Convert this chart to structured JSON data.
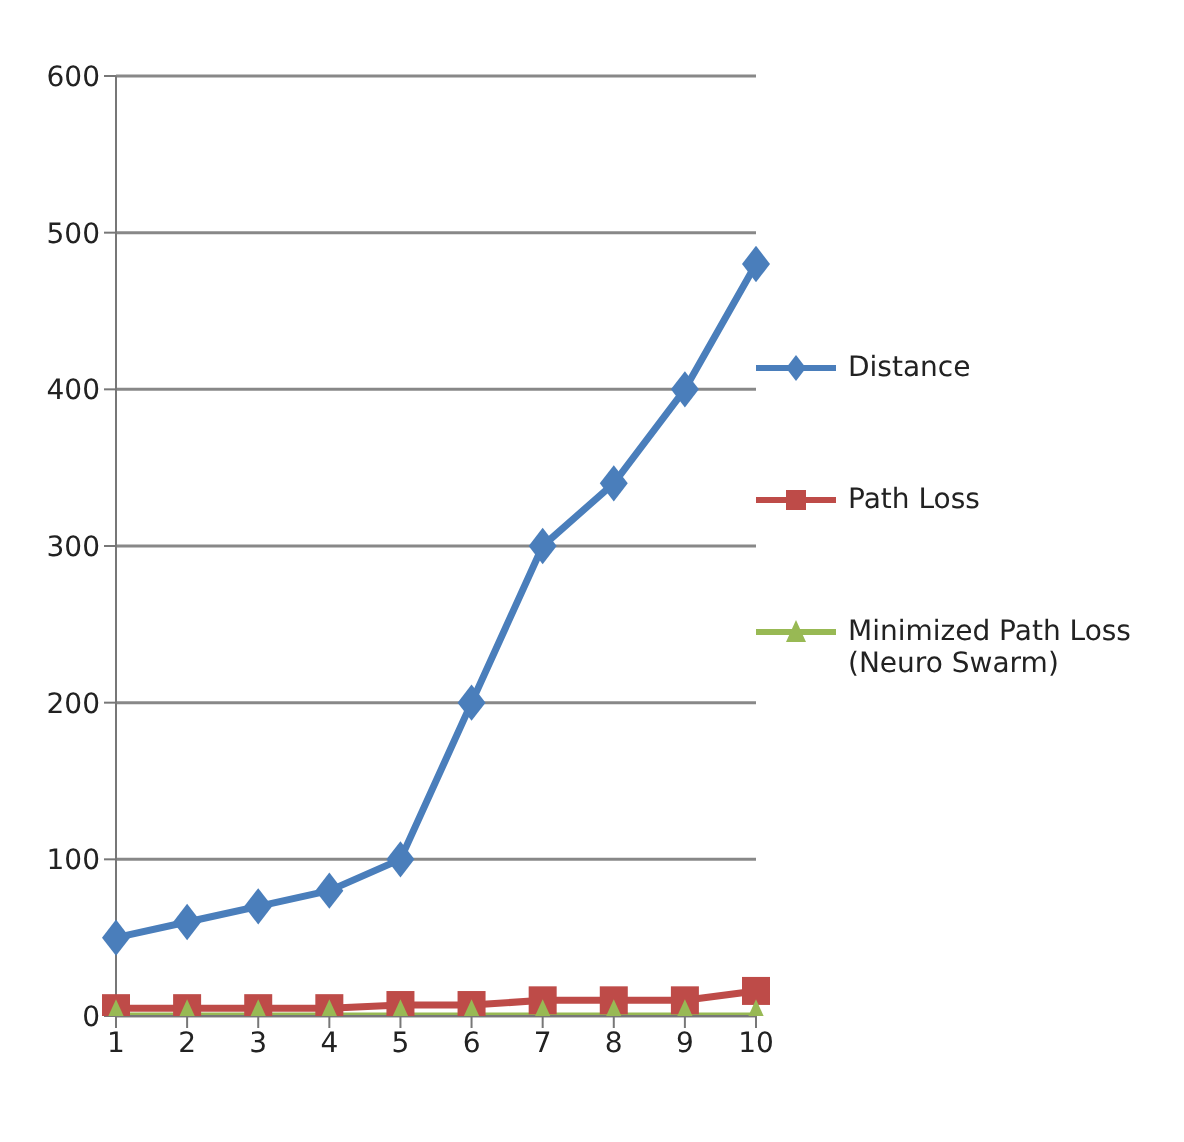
{
  "chart_data": {
    "type": "line",
    "categories": [
      "1",
      "2",
      "3",
      "4",
      "5",
      "6",
      "7",
      "8",
      "9",
      "10"
    ],
    "series": [
      {
        "name": "Distance",
        "color": "#4a7ebb",
        "marker": "diamond",
        "values": [
          50,
          60,
          70,
          80,
          100,
          200,
          300,
          340,
          400,
          480
        ]
      },
      {
        "name": "Path Loss",
        "color": "#be4b48",
        "marker": "square",
        "values": [
          5,
          5,
          5,
          5,
          7,
          7,
          10,
          10,
          10,
          16
        ]
      },
      {
        "name": "Minimized Path Loss (Neuro Swarm)",
        "color": "#98b954",
        "marker": "triangle",
        "values": [
          0,
          0,
          0,
          0,
          0,
          0,
          0,
          0,
          0,
          0
        ]
      }
    ],
    "ylim": [
      0,
      600
    ],
    "yticks": [
      0,
      100,
      200,
      300,
      400,
      500,
      600
    ],
    "grid": "y",
    "legend": "right"
  }
}
